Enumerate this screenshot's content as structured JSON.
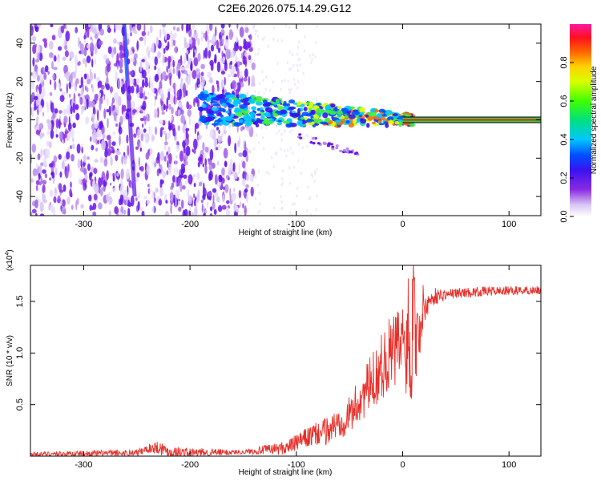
{
  "title": "C2E6.2026.075.14.29.G12",
  "colors": {
    "snr_line": "#e8302a",
    "trace": "#000000"
  },
  "chart_data": [
    {
      "type": "heatmap",
      "name": "spectrogram",
      "xlabel": "Height of straight line (km)",
      "ylabel": "Frequency (Hz)",
      "xlim": [
        -350,
        130
      ],
      "ylim": [
        -50,
        50
      ],
      "x_ticks": [
        "-300",
        "-200",
        "-100",
        "0",
        "100"
      ],
      "x_tick_values": [
        -300,
        -200,
        -100,
        0,
        100
      ],
      "y_ticks": [
        "-40",
        "-20",
        "0",
        "20",
        "40"
      ],
      "y_tick_values": [
        -40,
        -20,
        0,
        20,
        40
      ],
      "noise_region_x": [
        -350,
        -140
      ],
      "signal_band_x": [
        -190,
        10
      ],
      "tone_x": [
        0,
        130
      ],
      "tone_y": 0,
      "colorbar": {
        "label": "Normalized spectral amplitude",
        "ticks": [
          "0.0",
          "0.2",
          "0.4",
          "0.6",
          "0.8"
        ],
        "tick_values": [
          0.0,
          0.2,
          0.4,
          0.6,
          0.8
        ],
        "range": [
          0,
          1
        ]
      }
    },
    {
      "type": "line",
      "name": "snr",
      "xlabel": "Height of straight line (km)",
      "ylabel": "SNR (10 * v/v)",
      "scale_label": "(x10",
      "scale_exp": "4",
      "scale_close": ")",
      "xlim": [
        -350,
        130
      ],
      "ylim": [
        0,
        1.85
      ],
      "x_ticks": [
        "-300",
        "-200",
        "-100",
        "0",
        "100"
      ],
      "x_tick_values": [
        -300,
        -200,
        -100,
        0,
        100
      ],
      "y_ticks": [
        "0.5",
        "1.0",
        "1.5"
      ],
      "y_tick_values": [
        0.5,
        1.0,
        1.5
      ],
      "profile_x": [
        -350,
        -250,
        -240,
        -230,
        -220,
        -200,
        -150,
        -110,
        -90,
        -70,
        -50,
        -30,
        -15,
        0,
        5,
        10,
        15,
        20,
        30,
        50,
        80,
        130
      ],
      "profile_y": [
        0.02,
        0.03,
        0.07,
        0.09,
        0.04,
        0.03,
        0.04,
        0.08,
        0.18,
        0.25,
        0.4,
        0.7,
        0.95,
        1.1,
        1.05,
        1.0,
        1.2,
        1.45,
        1.55,
        1.58,
        1.6,
        1.61
      ],
      "noise_amp_x": [
        -350,
        -240,
        -230,
        -150,
        -100,
        -50,
        -20,
        0,
        10,
        25,
        40,
        130
      ],
      "noise_amp_y": [
        0.02,
        0.04,
        0.07,
        0.02,
        0.08,
        0.18,
        0.32,
        0.45,
        0.5,
        0.1,
        0.05,
        0.04
      ]
    }
  ]
}
